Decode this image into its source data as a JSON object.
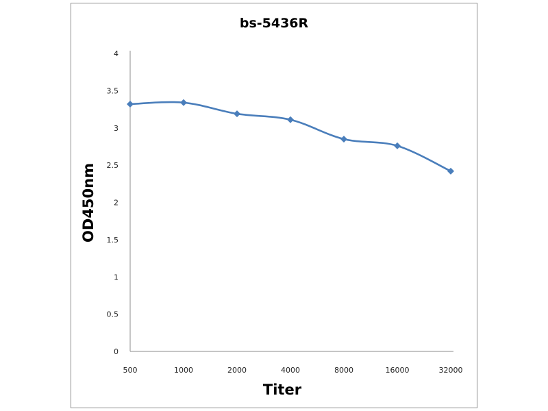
{
  "chart_data": {
    "type": "line",
    "title": "bs-5436R",
    "xlabel": "Titer",
    "ylabel": "OD450nm",
    "categories": [
      "500",
      "1000",
      "2000",
      "4000",
      "8000",
      "16000",
      "32000"
    ],
    "values": [
      3.32,
      3.34,
      3.19,
      3.11,
      2.85,
      2.76,
      2.42
    ],
    "ylim": [
      0,
      4
    ],
    "yticks": [
      "0",
      "0.5",
      "1",
      "1.5",
      "2",
      "2.5",
      "3",
      "3.5",
      "4"
    ],
    "grid": false,
    "marker": "diamond",
    "smooth": true,
    "line_color": "#4a7ebb"
  }
}
